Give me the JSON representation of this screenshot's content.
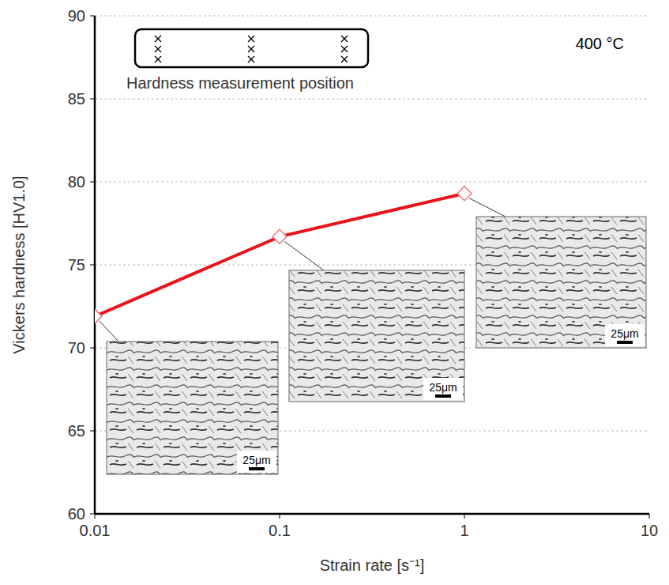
{
  "chart_data": {
    "type": "line",
    "x": [
      0.01,
      0.1,
      1
    ],
    "values": [
      71.9,
      76.7,
      79.3
    ],
    "color": "#e8141c",
    "marker": "diamond",
    "xlabel": "Strain rate [s⁻¹]",
    "ylabel": "Vickers hardness  [HV1.0]",
    "xlim": [
      0.01,
      10
    ],
    "xticks": [
      0.01,
      0.1,
      1,
      10
    ],
    "ylim": [
      60,
      90
    ],
    "yticks": [
      60,
      65,
      70,
      75,
      80,
      85,
      90
    ],
    "log": "x",
    "grid": true,
    "annotations": [
      "400 °C",
      "Hardness measurement position"
    ],
    "inset_scale_labels": [
      "25μm",
      "25μm",
      "25μm"
    ]
  }
}
